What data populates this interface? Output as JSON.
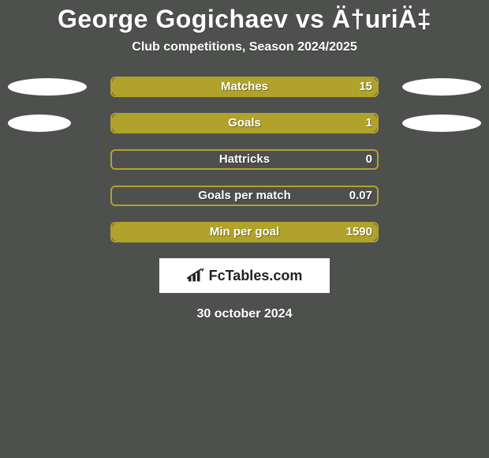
{
  "background_color": "#4e504e",
  "text_color": "#ffffff",
  "title": {
    "text": "George Gogichaev vs Ä†uriÄ‡",
    "fontsize": 32,
    "color": "#ffffff"
  },
  "subtitle": {
    "text": "Club competitions, Season 2024/2025",
    "fontsize": 16,
    "color": "#ffffff"
  },
  "pill_color": "#ffffff",
  "bar_track_border": "#b0a22a",
  "bar_track_bg": "transparent",
  "bar_fill_color": "#b0a22a",
  "rows": [
    {
      "label": "Matches",
      "value": "15",
      "fill_pct": 100,
      "left_pill_w": 100,
      "right_pill_w": 100,
      "show_pills": true
    },
    {
      "label": "Goals",
      "value": "1",
      "fill_pct": 100,
      "left_pill_w": 80,
      "right_pill_w": 100,
      "show_pills": true
    },
    {
      "label": "Hattricks",
      "value": "0",
      "fill_pct": 0,
      "left_pill_w": 0,
      "right_pill_w": 0,
      "show_pills": false
    },
    {
      "label": "Goals per match",
      "value": "0.07",
      "fill_pct": 0,
      "left_pill_w": 0,
      "right_pill_w": 0,
      "show_pills": false
    },
    {
      "label": "Min per goal",
      "value": "1590",
      "fill_pct": 100,
      "left_pill_w": 0,
      "right_pill_w": 0,
      "show_pills": false
    }
  ],
  "brand": {
    "text": "FcTables.com",
    "box_bg": "#ffffff",
    "text_color": "#222222",
    "fontsize": 18
  },
  "date": {
    "text": "30 october 2024",
    "fontsize": 16,
    "color": "#ffffff"
  }
}
